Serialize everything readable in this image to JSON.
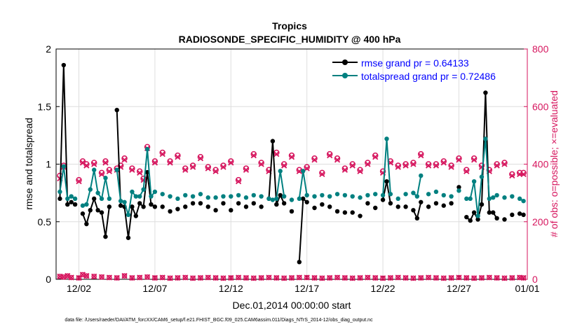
{
  "chart_data": {
    "type": "line",
    "title": "Tropics",
    "subtitle": "RADIOSONDE_SPECIFIC_HUMIDITY @ 400 hPa",
    "xlabel": "Dec.01,2014 00:00:00 start",
    "ylabel": "rmse and totalspread",
    "y2label": "# of obs: o=possible; ×=evaluated",
    "footnote": "data file: /Users/raeder/DAI/ATM_forcXX/CAM6_setup/f.e21.FHIST_BGC.f09_025.CAM6assim.011/Diags_NTrS_2014-12/obs_diag_output.nc",
    "xlim": [
      0.5,
      31.5
    ],
    "ylim": [
      0,
      2
    ],
    "y2lim": [
      0,
      800
    ],
    "xticks": [
      {
        "x": 2,
        "label": "12/02"
      },
      {
        "x": 7,
        "label": "12/07"
      },
      {
        "x": 12,
        "label": "12/12"
      },
      {
        "x": 17,
        "label": "12/17"
      },
      {
        "x": 22,
        "label": "12/22"
      },
      {
        "x": 27,
        "label": "12/27"
      },
      {
        "x": 32,
        "label": "01/01"
      }
    ],
    "yticks": [
      "0",
      "0.5",
      "1",
      "1.5",
      "2"
    ],
    "y2ticks": [
      "0",
      "200",
      "400",
      "600",
      "800"
    ],
    "colors": {
      "rmse": "#000000",
      "spread": "#008080",
      "obs": "#d6165e",
      "grid": "#dedede",
      "title": "#000000",
      "legend_text": "#0000ff"
    },
    "legend_position": "top-right",
    "x": [
      0.75,
      1.0,
      1.25,
      1.5,
      1.75,
      2.25,
      2.5,
      2.75,
      3.0,
      3.25,
      3.5,
      3.75,
      4.0,
      4.5,
      4.75,
      5.0,
      5.25,
      5.5,
      5.75,
      6.0,
      6.25,
      6.5,
      6.75,
      7.0,
      7.5,
      8.0,
      8.5,
      9.0,
      9.5,
      10.0,
      10.5,
      11.0,
      11.5,
      12.0,
      12.5,
      13.0,
      13.5,
      14.0,
      14.5,
      14.75,
      15.0,
      15.25,
      15.5,
      16.0,
      16.5,
      16.75,
      17.0,
      17.5,
      18.0,
      18.5,
      19.0,
      19.5,
      20.0,
      20.5,
      21.0,
      21.5,
      22.0,
      22.25,
      22.5,
      23.0,
      23.5,
      24.0,
      24.25,
      24.5,
      25.0,
      25.5,
      26.0,
      26.5,
      27.0,
      27.5,
      27.75,
      28.0,
      28.25,
      28.5,
      28.75,
      29.0,
      29.25,
      29.5,
      30.0,
      30.5,
      31.0,
      31.25
    ],
    "series": [
      {
        "name": "rmse grand pr = 0.64133",
        "values": [
          0.7,
          1.86,
          0.65,
          0.67,
          0.65,
          0.57,
          0.48,
          0.6,
          0.7,
          0.6,
          0.58,
          0.37,
          0.63,
          1.47,
          0.64,
          0.63,
          0.36,
          0.63,
          0.55,
          0.66,
          0.63,
          0.93,
          0.65,
          0.63,
          0.63,
          0.59,
          0.61,
          0.63,
          0.66,
          0.66,
          0.63,
          0.6,
          0.66,
          0.6,
          0.66,
          0.63,
          0.66,
          0.63,
          0.7,
          1.2,
          0.65,
          0.73,
          0.66,
          0.59,
          0.15,
          0.7,
          0.67,
          0.62,
          0.65,
          0.63,
          0.59,
          0.58,
          0.58,
          0.55,
          0.66,
          0.62,
          0.69,
          0.85,
          0.66,
          0.63,
          0.63,
          0.6,
          0.53,
          0.67,
          0.63,
          0.66,
          0.64,
          0.66,
          0.8,
          0.54,
          0.51,
          0.58,
          0.52,
          0.65,
          1.62,
          0.58,
          0.58,
          0.53,
          0.52,
          0.56,
          0.57,
          0.56
        ]
      },
      {
        "name": "totalspread grand pr = 0.72486",
        "values": [
          0.76,
          0.98,
          0.7,
          0.72,
          0.7,
          0.64,
          0.65,
          0.78,
          0.95,
          0.75,
          0.7,
          0.88,
          0.7,
          0.95,
          0.68,
          0.67,
          0.56,
          0.76,
          0.72,
          0.72,
          0.78,
          1.13,
          0.72,
          0.76,
          0.74,
          0.72,
          0.7,
          0.73,
          0.72,
          0.74,
          0.71,
          0.71,
          0.72,
          0.72,
          0.73,
          0.71,
          0.73,
          0.72,
          0.7,
          0.69,
          0.7,
          0.94,
          0.72,
          0.69,
          0.7,
          0.94,
          0.73,
          0.72,
          0.73,
          0.72,
          0.74,
          0.73,
          0.72,
          0.71,
          0.73,
          0.74,
          0.73,
          1.22,
          0.74,
          0.7,
          0.74,
          0.75,
          0.72,
          0.9,
          0.74,
          0.76,
          0.73,
          0.72,
          0.77,
          0.7,
          0.7,
          0.85,
          0.55,
          0.89,
          1.22,
          0.7,
          0.71,
          0.73,
          0.71,
          0.72,
          0.7,
          0.68
        ]
      }
    ],
    "obs_possible_x": [
      0.75,
      1.0,
      2.0,
      2.25,
      2.5,
      3.0,
      3.5,
      3.75,
      4.0,
      4.5,
      4.75,
      5.0,
      5.5,
      6.0,
      6.25,
      6.5,
      7.0,
      7.5,
      8.0,
      8.5,
      9.0,
      9.5,
      10.0,
      10.5,
      11.0,
      11.5,
      12.0,
      12.5,
      13.0,
      13.5,
      14.0,
      14.5,
      15.0,
      15.5,
      16.0,
      16.5,
      17.0,
      17.5,
      18.0,
      18.5,
      19.0,
      19.5,
      20.0,
      20.5,
      21.0,
      21.5,
      22.0,
      22.5,
      23.0,
      23.5,
      24.0,
      24.5,
      25.0,
      25.5,
      26.0,
      26.5,
      27.0,
      27.5,
      28.0,
      28.5,
      29.0,
      29.5,
      30.0,
      30.5,
      31.0,
      31.25
    ],
    "obs_possible_y": [
      360,
      395,
      345,
      410,
      400,
      405,
      370,
      410,
      380,
      385,
      395,
      420,
      385,
      375,
      350,
      460,
      410,
      440,
      410,
      430,
      385,
      395,
      425,
      390,
      380,
      395,
      410,
      345,
      385,
      435,
      405,
      380,
      440,
      400,
      430,
      380,
      390,
      420,
      370,
      435,
      420,
      385,
      400,
      380,
      405,
      430,
      375,
      410,
      395,
      400,
      405,
      435,
      400,
      400,
      410,
      395,
      420,
      380,
      420,
      395,
      380,
      400,
      405,
      365,
      370,
      370
    ],
    "obs_evaluated_y": [
      350,
      390,
      340,
      405,
      395,
      400,
      365,
      405,
      375,
      380,
      390,
      415,
      380,
      370,
      345,
      455,
      405,
      435,
      405,
      425,
      380,
      390,
      420,
      385,
      375,
      390,
      405,
      340,
      380,
      430,
      400,
      375,
      435,
      395,
      425,
      375,
      385,
      415,
      365,
      430,
      415,
      380,
      395,
      375,
      400,
      425,
      370,
      405,
      390,
      395,
      400,
      430,
      395,
      395,
      405,
      390,
      415,
      375,
      415,
      390,
      375,
      395,
      400,
      360,
      365,
      365
    ],
    "obs_bottom_x": [
      0.75,
      1.0,
      1.25,
      1.5,
      2.0,
      2.25,
      2.5,
      3.0,
      3.5,
      4.0,
      4.5,
      5.0,
      5.5,
      6.0,
      6.5,
      7.0,
      7.5,
      8.0,
      8.5,
      9.0,
      9.5,
      10.0,
      10.5,
      11.0,
      11.5,
      12.0,
      12.5,
      13.0,
      13.5,
      14.0,
      14.5,
      15.0,
      15.5,
      16.0,
      16.5,
      17.0,
      17.5,
      18.0,
      18.5,
      19.0,
      19.5,
      20.0,
      20.5,
      21.0,
      21.5,
      22.0,
      22.5,
      23.0,
      23.5,
      24.0,
      24.5,
      25.0,
      25.5,
      26.0,
      26.5,
      27.0,
      27.5,
      28.0,
      28.5,
      29.0,
      29.5,
      30.0,
      30.5,
      31.0,
      31.25
    ],
    "obs_bottom_y": [
      10,
      8,
      12,
      6,
      5,
      16,
      12,
      10,
      8,
      6,
      5,
      12,
      5,
      6,
      8,
      5,
      6,
      4,
      5,
      6,
      4,
      5,
      6,
      5,
      4,
      5,
      6,
      5,
      4,
      5,
      6,
      5,
      4,
      5,
      6,
      6,
      5,
      4,
      5,
      6,
      5,
      4,
      5,
      6,
      5,
      4,
      5,
      6,
      5,
      4,
      5,
      6,
      5,
      4,
      5,
      6,
      5,
      4,
      5,
      6,
      5,
      4,
      5,
      6,
      5
    ]
  }
}
